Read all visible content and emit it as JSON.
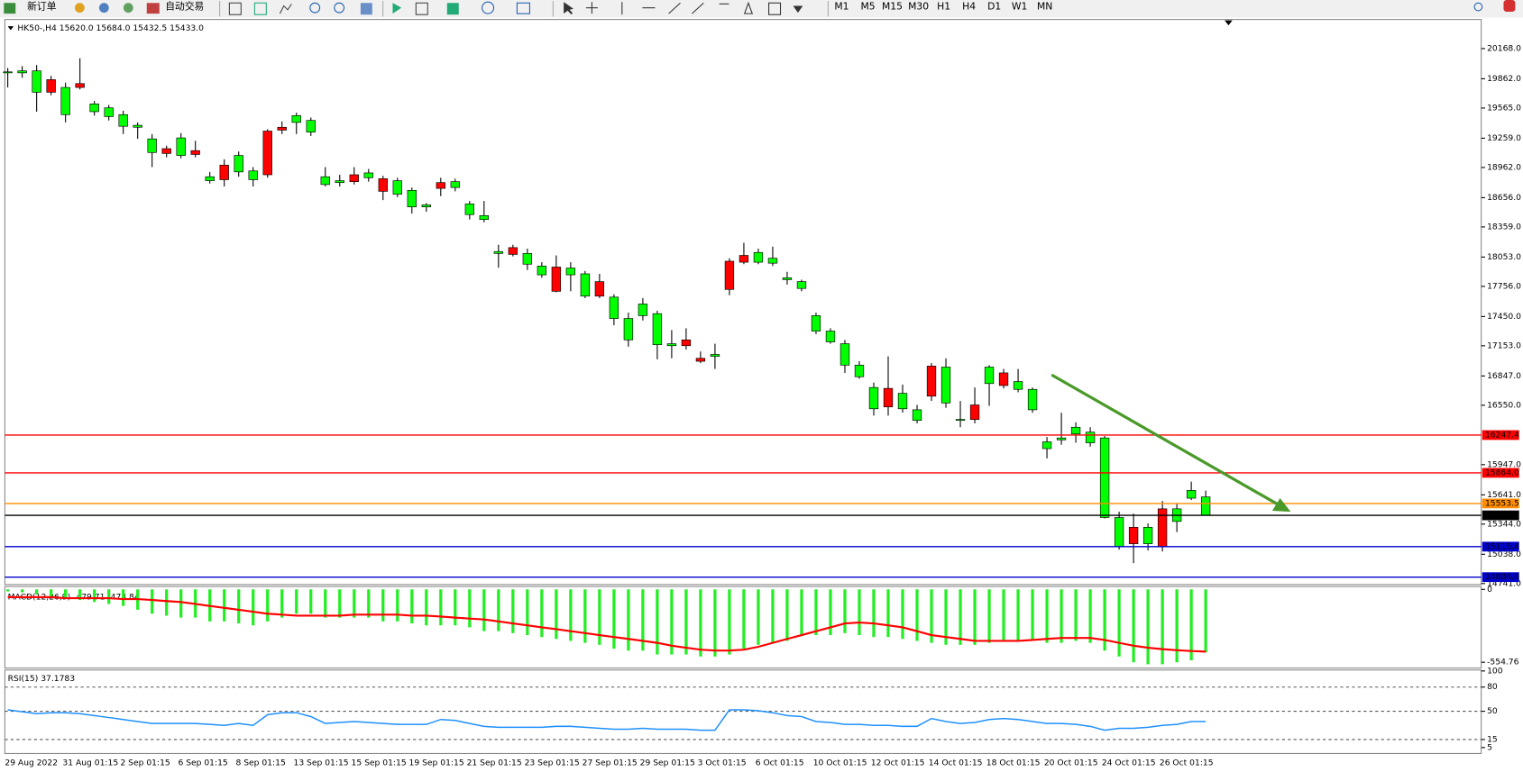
{
  "toolbar": {
    "new_order": "新订单",
    "auto_trading": "自动交易",
    "timeframes": [
      "M1",
      "M5",
      "M15",
      "M30",
      "H1",
      "H4",
      "D1",
      "W1",
      "MN"
    ]
  },
  "chart_data": [
    {
      "type": "candlestick",
      "title": "HK50-,H4  15620.0 15684.0 15432.5 15433.0",
      "categories": [
        "29 Aug 2022",
        null,
        null,
        null,
        "31 Aug 01:15",
        null,
        null,
        null,
        "2 Sep 01:15",
        null,
        null,
        null,
        "6 Sep 01:15",
        null,
        null,
        null,
        "8 Sep 01:15",
        null,
        null,
        null,
        "13 Sep 01:15",
        null,
        null,
        null,
        "15 Sep 01:15",
        null,
        null,
        null,
        "19 Sep 01:15",
        null,
        null,
        null,
        "21 Sep 01:15",
        null,
        null,
        null,
        "23 Sep 01:15",
        null,
        null,
        null,
        "27 Sep 01:15",
        null,
        null,
        null,
        "29 Sep 01:15",
        null,
        null,
        null,
        "3 Oct 01:15",
        null,
        null,
        null,
        "6 Oct 01:15",
        null,
        null,
        null,
        "10 Oct 01:15",
        null,
        null,
        null,
        "12 Oct 01:15",
        null,
        null,
        null,
        "14 Oct 01:15",
        null,
        null,
        null,
        "18 Oct 01:15",
        null,
        null,
        null,
        "20 Oct 01:15",
        null,
        null,
        null,
        "24 Oct 01:15",
        null,
        null,
        null,
        "26 Oct 01:15",
        null,
        null,
        null
      ],
      "open": [
        19932,
        19942,
        19942,
        19725,
        19774,
        19774,
        19607,
        19567,
        19498,
        19390,
        19252,
        19104,
        19262,
        19094,
        18868,
        18838,
        19084,
        18927,
        18888,
        19341,
        19488,
        19439,
        18868,
        18828,
        18818,
        18907,
        18720,
        18828,
        18730,
        18582,
        18750,
        18818,
        18592,
        18474,
        18109,
        18080,
        18090,
        17962,
        17706,
        17942,
        17883,
        17657,
        17647,
        17430,
        17577,
        17479,
        17174,
        17154,
        16996,
        17065,
        17725,
        18001,
        18100,
        18041,
        17843,
        17804,
        17459,
        17302,
        17174,
        16957,
        16730,
        16533,
        16671,
        16504,
        16642,
        16937,
        16406,
        16405,
        16937,
        16750,
        16790,
        16711,
        16179,
        16218,
        16327,
        16277,
        16218,
        15411,
        15145,
        15312,
        15115,
        15499,
        15686,
        15620
      ],
      "high": [
        19971,
        19991,
        20001,
        19892,
        19823,
        20070,
        19636,
        19597,
        19538,
        19419,
        19301,
        19183,
        19311,
        19232,
        18917,
        19045,
        19124,
        18966,
        19350,
        19429,
        19518,
        19469,
        18966,
        18888,
        18966,
        18947,
        18878,
        18858,
        18759,
        18602,
        18858,
        18848,
        18622,
        18622,
        18178,
        18178,
        18139,
        18001,
        18070,
        18001,
        17912,
        17883,
        17676,
        17489,
        17637,
        17509,
        17312,
        17331,
        17095,
        17174,
        18041,
        18198,
        18139,
        18159,
        17903,
        17824,
        17489,
        17331,
        17213,
        16996,
        16780,
        17046,
        16760,
        16553,
        16977,
        17026,
        16593,
        16730,
        16957,
        16918,
        16918,
        16730,
        16228,
        16474,
        16376,
        16327,
        16238,
        15470,
        15450,
        15351,
        15578,
        15548,
        15775,
        15684
      ],
      "low": [
        19774,
        19872,
        19528,
        19695,
        19419,
        19754,
        19488,
        19439,
        19301,
        19252,
        18966,
        19065,
        19055,
        19065,
        18799,
        18769,
        18868,
        18769,
        18858,
        19301,
        19301,
        19282,
        18769,
        18769,
        18789,
        18818,
        18631,
        18661,
        18494,
        18513,
        18671,
        18720,
        18434,
        18405,
        17945,
        18060,
        17922,
        17843,
        17696,
        17706,
        17637,
        17637,
        17361,
        17144,
        17410,
        17016,
        17026,
        17115,
        16977,
        16918,
        17666,
        17981,
        17981,
        17962,
        17774,
        17706,
        17272,
        17174,
        16878,
        16819,
        16445,
        16445,
        16474,
        16366,
        16593,
        16524,
        16327,
        16366,
        16543,
        16721,
        16681,
        16474,
        16011,
        16149,
        16169,
        16130,
        15401,
        15085,
        14948,
        15076,
        15066,
        15263,
        15588,
        15432.5
      ],
      "close": [
        19922,
        19922,
        19725,
        19853,
        19498,
        19813,
        19528,
        19478,
        19380,
        19370,
        19114,
        19153,
        19084,
        19133,
        18828,
        18986,
        18917,
        18838,
        19331,
        19370,
        19419,
        19321,
        18789,
        18809,
        18888,
        18858,
        18848,
        18691,
        18562,
        18562,
        18809,
        18759,
        18484,
        18434,
        18090,
        18149,
        17981,
        17873,
        17952,
        17873,
        17657,
        17804,
        17430,
        17213,
        17459,
        17164,
        17154,
        17213,
        17026,
        17046,
        18011,
        18070,
        18001,
        17991,
        17824,
        17735,
        17302,
        17193,
        16957,
        16839,
        16514,
        16721,
        16514,
        16396,
        16947,
        16573,
        16396,
        16553,
        16770,
        16878,
        16711,
        16504,
        16110,
        16199,
        16258,
        16169,
        15411,
        15115,
        15312,
        15145,
        15499,
        15371,
        15607,
        15433
      ],
      "up_color": "#ff0000",
      "down_color": "#00ff00",
      "ylim": [
        14740.6,
        20443.8
      ],
      "yticks": [
        {
          "value": 20168,
          "label": "20168.0"
        },
        {
          "value": 19862,
          "label": "19862.0"
        },
        {
          "value": 19565,
          "label": "19565.0"
        },
        {
          "value": 19259,
          "label": "19259.0"
        },
        {
          "value": 18962,
          "label": "18962.0"
        },
        {
          "value": 18656,
          "label": "18656.0"
        },
        {
          "value": 18359,
          "label": "18359.0"
        },
        {
          "value": 18053,
          "label": "18053.0"
        },
        {
          "value": 17756,
          "label": "17756.0"
        },
        {
          "value": 17450,
          "label": "17450.0"
        },
        {
          "value": 17153,
          "label": "17153.0"
        },
        {
          "value": 16847,
          "label": "16847.0"
        },
        {
          "value": 16550,
          "label": "16550.0"
        },
        {
          "value": 15947,
          "label": "15947.0"
        },
        {
          "value": 15641,
          "label": "15641.0"
        },
        {
          "value": 15344,
          "label": "15344.0"
        },
        {
          "value": 15038,
          "label": "15038.0"
        },
        {
          "value": 14741,
          "label": "14741.0"
        }
      ],
      "levels": [
        {
          "value": 16247.4,
          "color": "#ff0000"
        },
        {
          "value": 15864.0,
          "label": "15864.0",
          "color": "#ff0000"
        },
        {
          "value": 15553.5,
          "label": "15553.5",
          "color": "#ff8c00"
        },
        {
          "value": 15433.0,
          "label": "15433.0",
          "color": "#000000"
        },
        {
          "value": 15115.4,
          "color": "#0000cd"
        },
        {
          "value": 14806.0,
          "label": "14806.0",
          "color": "#0000cd"
        }
      ]
    },
    {
      "type": "macd",
      "title": "MACD(12,26,9) -479.71 -473.84",
      "histogram": {
        "color": "#22ee22",
        "values": [
          -15,
          -22,
          -37,
          -52,
          -67,
          -81,
          -96,
          -111,
          -126,
          -155,
          -185,
          -200,
          -215,
          -215,
          -244,
          -244,
          -259,
          -274,
          -244,
          -215,
          -185,
          -185,
          -215,
          -215,
          -215,
          -215,
          -244,
          -244,
          -259,
          -274,
          -274,
          -274,
          -289,
          -318,
          -318,
          -333,
          -348,
          -363,
          -377,
          -392,
          -407,
          -422,
          -451,
          -466,
          -466,
          -496,
          -496,
          -496,
          -511,
          -511,
          -496,
          -451,
          -422,
          -407,
          -392,
          -348,
          -348,
          -348,
          -333,
          -348,
          -363,
          -363,
          -377,
          -392,
          -407,
          -422,
          -422,
          -422,
          -407,
          -392,
          -392,
          -392,
          -407,
          -407,
          -392,
          -407,
          -466,
          -511,
          -555,
          -570,
          -570,
          -555,
          -540,
          -479.71
        ]
      },
      "signal": {
        "color": "#ff0000",
        "values": [
          -59,
          -59,
          -59,
          -59,
          -67,
          -67,
          -67,
          -67,
          -74,
          -74,
          -81,
          -89,
          -96,
          -111,
          -126,
          -141,
          -155,
          -170,
          -185,
          -192,
          -200,
          -200,
          -200,
          -200,
          -192,
          -192,
          -192,
          -192,
          -200,
          -200,
          -207,
          -215,
          -222,
          -229,
          -244,
          -259,
          -274,
          -289,
          -303,
          -318,
          -333,
          -348,
          -363,
          -377,
          -392,
          -407,
          -429,
          -444,
          -459,
          -466,
          -466,
          -459,
          -437,
          -407,
          -377,
          -348,
          -318,
          -289,
          -259,
          -252,
          -259,
          -274,
          -289,
          -318,
          -348,
          -363,
          -377,
          -392,
          -392,
          -392,
          -392,
          -385,
          -377,
          -370,
          -370,
          -370,
          -385,
          -407,
          -429,
          -444,
          -455,
          -463,
          -469,
          -473.84
        ]
      },
      "ylim": [
        -599,
        22
      ],
      "yticks": [
        0,
        -554.76
      ]
    },
    {
      "type": "rsi",
      "title": "RSI(15) 37.1783",
      "color": "#1e90ff",
      "values": [
        51.8,
        49.4,
        47.0,
        48.2,
        48.2,
        47.0,
        44.6,
        42.2,
        39.8,
        37.3,
        34.9,
        34.9,
        34.9,
        34.9,
        33.7,
        32.5,
        34.9,
        32.5,
        45.8,
        48.2,
        48.2,
        43.4,
        34.9,
        36.1,
        37.3,
        36.1,
        34.9,
        33.7,
        33.7,
        33.7,
        39.8,
        38.6,
        34.9,
        31.3,
        30.1,
        30.1,
        30.1,
        30.1,
        31.3,
        31.3,
        30.1,
        28.9,
        27.7,
        27.7,
        28.9,
        27.7,
        27.7,
        27.7,
        26.5,
        26.5,
        51.8,
        51.8,
        50.6,
        48.2,
        44.6,
        43.4,
        37.3,
        36.1,
        33.7,
        33.7,
        32.5,
        32.5,
        31.3,
        31.3,
        41.0,
        37.3,
        34.9,
        36.1,
        39.8,
        41.0,
        39.8,
        37.3,
        34.9,
        34.9,
        33.7,
        31.3,
        26.5,
        28.9,
        28.9,
        30.1,
        32.5,
        33.7,
        37.3,
        37.1783
      ],
      "ylim": [
        -2.4,
        100
      ],
      "yticks": [
        100,
        80,
        50,
        15,
        5
      ],
      "levels": [
        80,
        50,
        15
      ]
    }
  ]
}
